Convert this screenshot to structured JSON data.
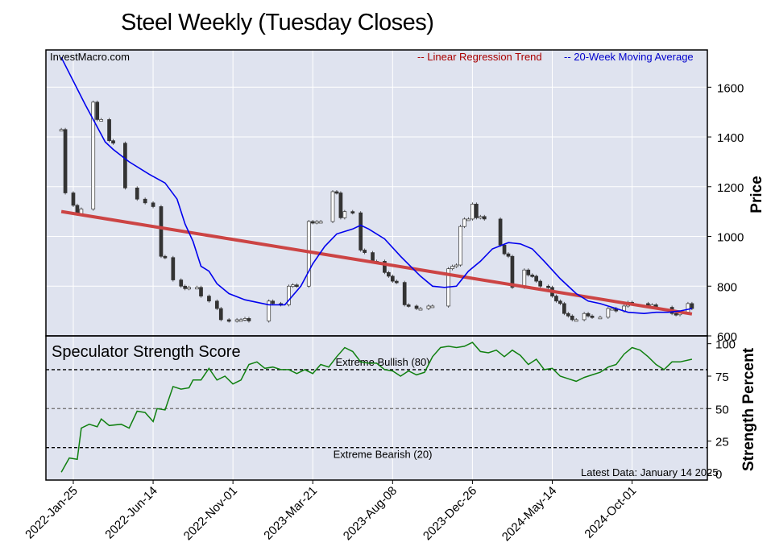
{
  "title": "Steel Weekly (Tuesday Closes)",
  "colors": {
    "plot_bg": "#dfe3ef",
    "grid": "#ffffff",
    "regression": "#cc4444",
    "moving_avg": "#0000ee",
    "strength": "#108010",
    "candle": "#333333",
    "legend_regression": "#aa0000",
    "legend_ma": "#0000cc"
  },
  "chart_data": [
    {
      "type": "candlestick",
      "watermark": "InvestMacro.com",
      "legend": [
        "-- Linear Regression Trend",
        "-- 20-Week Moving Average"
      ],
      "legend_position": "top-right",
      "ylabel": "Price",
      "ylim": [
        600,
        1750
      ],
      "yticks": [
        600,
        800,
        1000,
        1200,
        1400,
        1600
      ],
      "xticks": [
        "2022-Jan-25",
        "2022-Jun-14",
        "2022-Nov-01",
        "2023-Mar-21",
        "2023-Aug-08",
        "2023-Dec-26",
        "2024-May-14",
        "2024-Oct-01"
      ],
      "grid": true,
      "closes": [
        [
          "2022-01-04",
          1430
        ],
        [
          "2022-01-11",
          1175
        ],
        [
          "2022-01-25",
          1125
        ],
        [
          "2022-02-01",
          1090
        ],
        [
          "2022-02-08",
          1110
        ],
        [
          "2022-03-01",
          1540
        ],
        [
          "2022-03-08",
          1470
        ],
        [
          "2022-03-15",
          1470
        ],
        [
          "2022-03-29",
          1385
        ],
        [
          "2022-04-05",
          1375
        ],
        [
          "2022-04-26",
          1195
        ],
        [
          "2022-05-17",
          1150
        ],
        [
          "2022-05-31",
          1135
        ],
        [
          "2022-06-14",
          1120
        ],
        [
          "2022-06-28",
          920
        ],
        [
          "2022-07-05",
          915
        ],
        [
          "2022-07-19",
          825
        ],
        [
          "2022-08-02",
          800
        ],
        [
          "2022-08-09",
          790
        ],
        [
          "2022-08-16",
          795
        ],
        [
          "2022-08-30",
          795
        ],
        [
          "2022-09-06",
          760
        ],
        [
          "2022-09-20",
          740
        ],
        [
          "2022-10-04",
          710
        ],
        [
          "2022-10-11",
          665
        ],
        [
          "2022-10-25",
          660
        ],
        [
          "2022-11-08",
          665
        ],
        [
          "2022-11-15",
          665
        ],
        [
          "2022-11-22",
          670
        ],
        [
          "2022-11-29",
          660
        ],
        [
          "2023-01-03",
          740
        ],
        [
          "2023-01-10",
          730
        ],
        [
          "2023-01-24",
          725
        ],
        [
          "2023-02-07",
          800
        ],
        [
          "2023-02-14",
          805
        ],
        [
          "2023-02-21",
          800
        ],
        [
          "2023-03-14",
          1060
        ],
        [
          "2023-03-21",
          1055
        ],
        [
          "2023-03-28",
          1060
        ],
        [
          "2023-04-04",
          1060
        ],
        [
          "2023-04-25",
          1180
        ],
        [
          "2023-05-02",
          1175
        ],
        [
          "2023-05-09",
          1075
        ],
        [
          "2023-05-16",
          1100
        ],
        [
          "2023-05-30",
          1095
        ],
        [
          "2023-06-13",
          945
        ],
        [
          "2023-06-20",
          935
        ],
        [
          "2023-07-04",
          900
        ],
        [
          "2023-07-11",
          900
        ],
        [
          "2023-07-25",
          855
        ],
        [
          "2023-08-01",
          840
        ],
        [
          "2023-08-08",
          820
        ],
        [
          "2023-08-15",
          815
        ],
        [
          "2023-08-29",
          725
        ],
        [
          "2023-09-05",
          720
        ],
        [
          "2023-09-19",
          710
        ],
        [
          "2023-09-26",
          710
        ],
        [
          "2023-10-10",
          720
        ],
        [
          "2023-10-17",
          720
        ],
        [
          "2023-11-14",
          870
        ],
        [
          "2023-11-21",
          880
        ],
        [
          "2023-11-28",
          885
        ],
        [
          "2023-12-05",
          1040
        ],
        [
          "2023-12-12",
          1070
        ],
        [
          "2023-12-19",
          1070
        ],
        [
          "2023-12-26",
          1130
        ],
        [
          "2024-01-02",
          1075
        ],
        [
          "2024-01-09",
          1080
        ],
        [
          "2024-01-16",
          1070
        ],
        [
          "2024-02-13",
          965
        ],
        [
          "2024-02-20",
          930
        ],
        [
          "2024-02-27",
          920
        ],
        [
          "2024-03-05",
          795
        ],
        [
          "2024-03-26",
          865
        ],
        [
          "2024-04-02",
          845
        ],
        [
          "2024-04-09",
          840
        ],
        [
          "2024-04-16",
          820
        ],
        [
          "2024-04-23",
          800
        ],
        [
          "2024-05-07",
          795
        ],
        [
          "2024-05-14",
          760
        ],
        [
          "2024-05-21",
          740
        ],
        [
          "2024-05-28",
          730
        ],
        [
          "2024-06-04",
          690
        ],
        [
          "2024-06-11",
          680
        ],
        [
          "2024-06-18",
          665
        ],
        [
          "2024-06-25",
          665
        ],
        [
          "2024-07-09",
          690
        ],
        [
          "2024-07-16",
          680
        ],
        [
          "2024-07-23",
          675
        ],
        [
          "2024-08-06",
          675
        ],
        [
          "2024-08-20",
          710
        ],
        [
          "2024-08-27",
          710
        ],
        [
          "2024-09-03",
          700
        ],
        [
          "2024-09-17",
          720
        ],
        [
          "2024-09-24",
          735
        ],
        [
          "2024-10-01",
          730
        ],
        [
          "2024-10-29",
          720
        ],
        [
          "2024-11-05",
          725
        ],
        [
          "2024-11-12",
          715
        ],
        [
          "2024-12-10",
          690
        ],
        [
          "2024-12-17",
          685
        ],
        [
          "2024-12-24",
          695
        ],
        [
          "2025-01-07",
          730
        ],
        [
          "2025-01-14",
          710
        ]
      ],
      "series": [
        {
          "name": "Linear Regression Trend",
          "points": [
            [
              "2022-01-04",
              1100
            ],
            [
              "2025-01-14",
              688
            ]
          ]
        },
        {
          "name": "20-Week Moving Average",
          "points": [
            [
              "2022-01-04",
              1720
            ],
            [
              "2022-02-15",
              1530
            ],
            [
              "2022-03-22",
              1380
            ],
            [
              "2022-04-05",
              1350
            ],
            [
              "2022-05-03",
              1300
            ],
            [
              "2022-06-07",
              1250
            ],
            [
              "2022-07-05",
              1215
            ],
            [
              "2022-07-26",
              1150
            ],
            [
              "2022-08-09",
              1050
            ],
            [
              "2022-08-23",
              980
            ],
            [
              "2022-09-06",
              880
            ],
            [
              "2022-09-20",
              860
            ],
            [
              "2022-10-04",
              810
            ],
            [
              "2022-10-25",
              770
            ],
            [
              "2022-11-22",
              745
            ],
            [
              "2023-01-03",
              725
            ],
            [
              "2023-01-31",
              725
            ],
            [
              "2023-02-28",
              800
            ],
            [
              "2023-03-21",
              890
            ],
            [
              "2023-04-11",
              960
            ],
            [
              "2023-05-02",
              1010
            ],
            [
              "2023-05-30",
              1030
            ],
            [
              "2023-06-13",
              1045
            ],
            [
              "2023-06-27",
              1030
            ],
            [
              "2023-07-25",
              990
            ],
            [
              "2023-08-22",
              920
            ],
            [
              "2023-09-26",
              840
            ],
            [
              "2023-10-17",
              800
            ],
            [
              "2023-11-07",
              795
            ],
            [
              "2023-11-28",
              800
            ],
            [
              "2023-12-19",
              860
            ],
            [
              "2024-01-09",
              900
            ],
            [
              "2024-01-30",
              950
            ],
            [
              "2024-02-27",
              975
            ],
            [
              "2024-03-19",
              970
            ],
            [
              "2024-04-09",
              950
            ],
            [
              "2024-04-30",
              900
            ],
            [
              "2024-05-28",
              830
            ],
            [
              "2024-06-25",
              770
            ],
            [
              "2024-07-16",
              740
            ],
            [
              "2024-08-06",
              730
            ],
            [
              "2024-08-27",
              715
            ],
            [
              "2024-09-24",
              695
            ],
            [
              "2024-10-22",
              690
            ],
            [
              "2024-11-12",
              695
            ],
            [
              "2024-12-03",
              695
            ],
            [
              "2024-12-24",
              700
            ],
            [
              "2025-01-14",
              710
            ]
          ]
        }
      ]
    },
    {
      "type": "line",
      "label": "Speculator Strength Score",
      "ylabel": "Strength Percent",
      "ylim": [
        -5,
        106
      ],
      "yticks": [
        0,
        25,
        50,
        75,
        100
      ],
      "grid": true,
      "reference_lines": [
        {
          "value": 80,
          "label": "Extreme Bullish (80)"
        },
        {
          "value": 50,
          "label": ""
        },
        {
          "value": 20,
          "label": "Extreme Bearish (20)"
        }
      ],
      "footnote": "Latest Data: January 14 2025",
      "series": [
        {
          "points": [
            [
              "2022-01-04",
              1
            ],
            [
              "2022-01-18",
              12
            ],
            [
              "2022-02-01",
              11
            ],
            [
              "2022-02-08",
              35
            ],
            [
              "2022-02-22",
              38
            ],
            [
              "2022-03-08",
              36
            ],
            [
              "2022-03-15",
              42
            ],
            [
              "2022-03-29",
              37
            ],
            [
              "2022-04-19",
              38
            ],
            [
              "2022-05-03",
              35
            ],
            [
              "2022-05-17",
              48
            ],
            [
              "2022-05-31",
              47
            ],
            [
              "2022-06-14",
              40
            ],
            [
              "2022-06-21",
              50
            ],
            [
              "2022-07-05",
              49
            ],
            [
              "2022-07-19",
              67
            ],
            [
              "2022-08-02",
              65
            ],
            [
              "2022-08-16",
              66
            ],
            [
              "2022-08-23",
              72
            ],
            [
              "2022-09-06",
              72
            ],
            [
              "2022-09-20",
              81
            ],
            [
              "2022-10-04",
              72
            ],
            [
              "2022-10-18",
              75
            ],
            [
              "2022-11-01",
              69
            ],
            [
              "2022-11-15",
              72
            ],
            [
              "2022-11-29",
              84
            ],
            [
              "2022-12-13",
              86
            ],
            [
              "2022-12-27",
              81
            ],
            [
              "2023-01-10",
              82
            ],
            [
              "2023-01-24",
              80
            ],
            [
              "2023-02-07",
              80
            ],
            [
              "2023-02-21",
              77
            ],
            [
              "2023-03-07",
              80
            ],
            [
              "2023-03-21",
              77
            ],
            [
              "2023-04-04",
              84
            ],
            [
              "2023-04-18",
              82
            ],
            [
              "2023-05-02",
              90
            ],
            [
              "2023-05-16",
              97
            ],
            [
              "2023-05-30",
              94
            ],
            [
              "2023-06-13",
              86
            ],
            [
              "2023-06-27",
              85
            ],
            [
              "2023-07-11",
              85
            ],
            [
              "2023-07-25",
              80
            ],
            [
              "2023-08-08",
              79
            ],
            [
              "2023-08-22",
              75
            ],
            [
              "2023-09-05",
              79
            ],
            [
              "2023-09-19",
              76
            ],
            [
              "2023-10-03",
              78
            ],
            [
              "2023-10-17",
              90
            ],
            [
              "2023-10-31",
              97
            ],
            [
              "2023-11-14",
              98
            ],
            [
              "2023-11-28",
              97
            ],
            [
              "2023-12-12",
              98
            ],
            [
              "2023-12-26",
              101
            ],
            [
              "2024-01-09",
              94
            ],
            [
              "2024-01-23",
              93
            ],
            [
              "2024-02-06",
              95
            ],
            [
              "2024-02-20",
              90
            ],
            [
              "2024-03-05",
              95
            ],
            [
              "2024-03-19",
              91
            ],
            [
              "2024-04-02",
              84
            ],
            [
              "2024-04-16",
              88
            ],
            [
              "2024-04-30",
              80
            ],
            [
              "2024-05-14",
              81
            ],
            [
              "2024-05-28",
              75
            ],
            [
              "2024-06-11",
              73
            ],
            [
              "2024-06-25",
              71
            ],
            [
              "2024-07-09",
              74
            ],
            [
              "2024-07-23",
              76
            ],
            [
              "2024-08-06",
              78
            ],
            [
              "2024-08-20",
              82
            ],
            [
              "2024-09-03",
              84
            ],
            [
              "2024-09-17",
              92
            ],
            [
              "2024-10-01",
              97
            ],
            [
              "2024-10-15",
              95
            ],
            [
              "2024-10-29",
              90
            ],
            [
              "2024-11-12",
              84
            ],
            [
              "2024-11-26",
              80
            ],
            [
              "2024-12-10",
              86
            ],
            [
              "2024-12-24",
              86
            ],
            [
              "2025-01-14",
              88
            ]
          ]
        }
      ]
    }
  ]
}
